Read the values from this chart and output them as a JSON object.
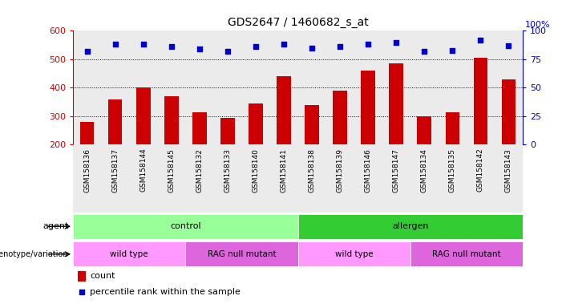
{
  "title": "GDS2647 / 1460682_s_at",
  "samples": [
    "GSM158136",
    "GSM158137",
    "GSM158144",
    "GSM158145",
    "GSM158132",
    "GSM158133",
    "GSM158140",
    "GSM158141",
    "GSM158138",
    "GSM158139",
    "GSM158146",
    "GSM158147",
    "GSM158134",
    "GSM158135",
    "GSM158142",
    "GSM158143"
  ],
  "counts": [
    280,
    360,
    400,
    370,
    313,
    295,
    345,
    440,
    340,
    390,
    460,
    485,
    300,
    315,
    505,
    430
  ],
  "percentile_ranks": [
    82,
    88,
    88,
    86,
    84,
    82,
    86,
    88,
    85,
    86,
    88,
    90,
    82,
    83,
    92,
    87
  ],
  "ylim_left": [
    200,
    600
  ],
  "ylim_right": [
    0,
    100
  ],
  "yticks_left": [
    200,
    300,
    400,
    500,
    600
  ],
  "yticks_right": [
    0,
    25,
    50,
    75,
    100
  ],
  "bar_color": "#cc0000",
  "dot_color": "#0000cc",
  "agent_labels": [
    {
      "text": "control",
      "start": 0,
      "end": 7,
      "color": "#99ff99"
    },
    {
      "text": "allergen",
      "start": 8,
      "end": 15,
      "color": "#33cc33"
    }
  ],
  "genotype_labels": [
    {
      "text": "wild type",
      "start": 0,
      "end": 3,
      "color": "#ff99ff"
    },
    {
      "text": "RAG null mutant",
      "start": 4,
      "end": 7,
      "color": "#dd66dd"
    },
    {
      "text": "wild type",
      "start": 8,
      "end": 11,
      "color": "#ff99ff"
    },
    {
      "text": "RAG null mutant",
      "start": 12,
      "end": 15,
      "color": "#dd66dd"
    }
  ],
  "col_bg_color": "#d8d8d8",
  "legend_count_color": "#cc0000",
  "legend_dot_color": "#0000cc"
}
